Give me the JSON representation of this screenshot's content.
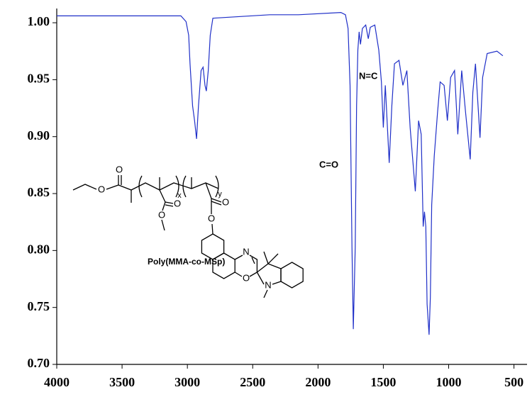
{
  "chart_data": {
    "type": "line",
    "color": "#1f2fc8",
    "x": [
      4000,
      3350,
      3050,
      3010,
      2990,
      2980,
      2960,
      2945,
      2930,
      2915,
      2895,
      2880,
      2865,
      2855,
      2840,
      2825,
      2805,
      2370,
      2150,
      1825,
      1790,
      1770,
      1755,
      1740,
      1730,
      1715,
      1705,
      1695,
      1685,
      1675,
      1660,
      1635,
      1615,
      1600,
      1565,
      1535,
      1515,
      1500,
      1485,
      1455,
      1435,
      1415,
      1380,
      1350,
      1320,
      1295,
      1255,
      1230,
      1210,
      1195,
      1185,
      1175,
      1165,
      1150,
      1140,
      1130,
      1110,
      1085,
      1065,
      1035,
      1010,
      985,
      955,
      930,
      900,
      870,
      835,
      815,
      795,
      760,
      740,
      705,
      630,
      585
    ],
    "values": [
      1.006,
      1.006,
      1.006,
      1.001,
      0.989,
      0.964,
      0.927,
      0.914,
      0.898,
      0.927,
      0.958,
      0.961,
      0.945,
      0.94,
      0.958,
      0.989,
      1.004,
      1.007,
      1.007,
      1.009,
      1.007,
      0.995,
      0.945,
      0.803,
      0.731,
      0.803,
      0.927,
      0.976,
      0.992,
      0.981,
      0.995,
      0.998,
      0.986,
      0.996,
      0.998,
      0.976,
      0.948,
      0.908,
      0.945,
      0.877,
      0.927,
      0.964,
      0.967,
      0.945,
      0.958,
      0.908,
      0.852,
      0.914,
      0.902,
      0.821,
      0.834,
      0.821,
      0.753,
      0.726,
      0.759,
      0.84,
      0.883,
      0.921,
      0.948,
      0.945,
      0.914,
      0.952,
      0.958,
      0.902,
      0.958,
      0.921,
      0.88,
      0.939,
      0.964,
      0.899,
      0.952,
      0.973,
      0.975,
      0.971
    ],
    "xlim": [
      4000,
      400
    ],
    "ylim": [
      0.7,
      1.0125
    ],
    "xticks": [
      4000,
      3500,
      3000,
      2500,
      2000,
      1500,
      1000,
      500
    ],
    "yticks": [
      {
        "value": 0.7,
        "label": "0.70"
      },
      {
        "value": 0.75,
        "label": "0.75"
      },
      {
        "value": 0.8,
        "label": "0.80"
      },
      {
        "value": 0.85,
        "label": "0.85"
      },
      {
        "value": 0.9,
        "label": "0.90"
      },
      {
        "value": 0.95,
        "label": "0.95"
      },
      {
        "value": 1.0,
        "label": "1.00"
      }
    ],
    "annotations": [
      "C=O",
      "N=C"
    ],
    "structure": {
      "name": "Poly(MMA-co-MSp)",
      "atoms": [
        "O",
        "O",
        "O",
        "O",
        "O",
        "O",
        "N",
        "O",
        "N"
      ],
      "subscripts": [
        "x",
        "y"
      ]
    }
  }
}
